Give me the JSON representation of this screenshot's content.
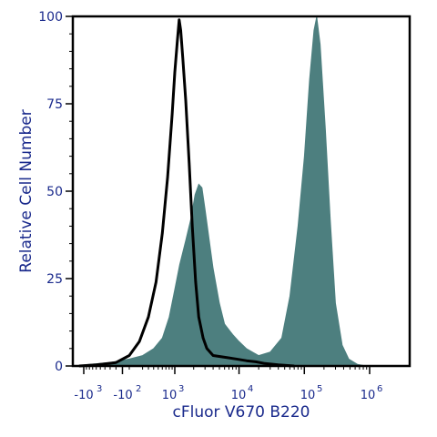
{
  "chart_data": {
    "type": "area",
    "xlabel": "cFluor V670 B220",
    "ylabel": "Relative Cell Number",
    "x_scale": "biexponential",
    "ylim": [
      0,
      100
    ],
    "y_ticks": [
      "0",
      "25",
      "50",
      "75",
      "100"
    ],
    "x_ticks": [
      {
        "base": "-10",
        "exp": "3"
      },
      {
        "base": "-10",
        "exp": "2"
      },
      {
        "base": "10",
        "exp": "3"
      },
      {
        "base": "10",
        "exp": "4"
      },
      {
        "base": "10",
        "exp": "5"
      },
      {
        "base": "10",
        "exp": "6"
      }
    ],
    "series": [
      {
        "style": "filled",
        "color": "#4d7f7f",
        "points": [
          [
            -1500,
            0
          ],
          [
            -800,
            0.5
          ],
          [
            -300,
            1
          ],
          [
            0,
            2
          ],
          [
            200,
            3
          ],
          [
            400,
            5
          ],
          [
            600,
            8
          ],
          [
            800,
            14
          ],
          [
            1000,
            22
          ],
          [
            1200,
            29
          ],
          [
            1500,
            36
          ],
          [
            1800,
            42
          ],
          [
            2100,
            49
          ],
          [
            2400,
            52
          ],
          [
            2700,
            51
          ],
          [
            3000,
            45
          ],
          [
            3500,
            36
          ],
          [
            4000,
            28
          ],
          [
            5000,
            18
          ],
          [
            6000,
            12
          ],
          [
            8000,
            9
          ],
          [
            10000,
            7
          ],
          [
            13000,
            5
          ],
          [
            16000,
            4
          ],
          [
            20000,
            3
          ],
          [
            30000,
            4
          ],
          [
            45000,
            8
          ],
          [
            60000,
            20
          ],
          [
            80000,
            40
          ],
          [
            100000,
            60
          ],
          [
            120000,
            82
          ],
          [
            140000,
            96
          ],
          [
            155000,
            100
          ],
          [
            175000,
            92
          ],
          [
            210000,
            68
          ],
          [
            250000,
            42
          ],
          [
            300000,
            18
          ],
          [
            380000,
            6
          ],
          [
            480000,
            2
          ],
          [
            650000,
            0.5
          ],
          [
            900000,
            0
          ]
        ]
      },
      {
        "style": "line",
        "color": "#000000",
        "points": [
          [
            -1200,
            0
          ],
          [
            -600,
            0.3
          ],
          [
            -200,
            1
          ],
          [
            0,
            3
          ],
          [
            150,
            7
          ],
          [
            300,
            14
          ],
          [
            450,
            24
          ],
          [
            600,
            38
          ],
          [
            750,
            54
          ],
          [
            900,
            72
          ],
          [
            1000,
            84
          ],
          [
            1100,
            93
          ],
          [
            1180,
            99
          ],
          [
            1250,
            96
          ],
          [
            1350,
            88
          ],
          [
            1500,
            76
          ],
          [
            1700,
            58
          ],
          [
            1900,
            40
          ],
          [
            2150,
            24
          ],
          [
            2400,
            14
          ],
          [
            2800,
            8
          ],
          [
            3200,
            5
          ],
          [
            4000,
            3
          ],
          [
            6000,
            2.5
          ],
          [
            9000,
            2
          ],
          [
            13000,
            1.5
          ],
          [
            18000,
            1.2
          ],
          [
            25000,
            0.7
          ],
          [
            40000,
            0.3
          ],
          [
            70000,
            0
          ]
        ]
      }
    ]
  }
}
